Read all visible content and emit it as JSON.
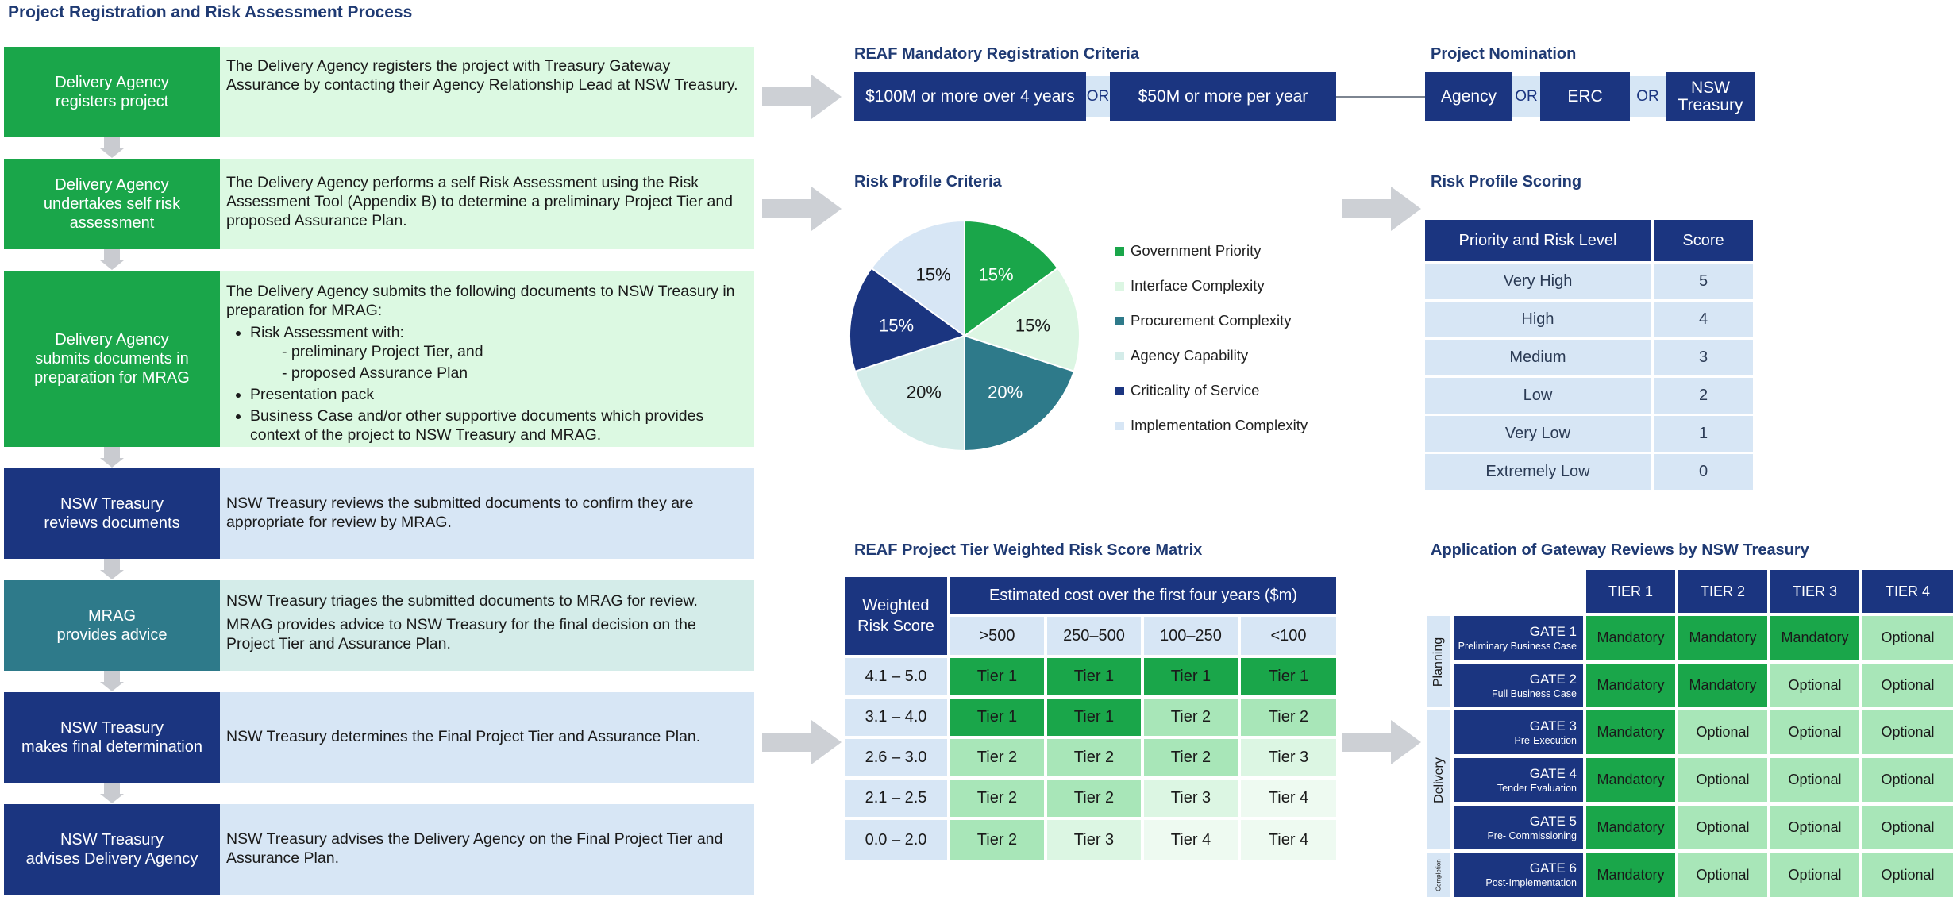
{
  "title": "Project Registration and Risk Assessment Process",
  "steps": [
    {
      "box": "Delivery Agency\nregisters project",
      "desc": "The Delivery Agency registers the project with Treasury Gateway Assurance by contacting their Agency Relationship Lead at NSW Treasury."
    },
    {
      "box": "Delivery Agency\nundertakes self risk\nassessment",
      "desc": "The Delivery Agency performs a self Risk Assessment using the Risk Assessment Tool (Appendix B) to determine a preliminary Project Tier and proposed Assurance Plan."
    },
    {
      "box": "Delivery Agency\nsubmits documents in\npreparation for MRAG",
      "desc": "The Delivery Agency submits the following documents to NSW Treasury in preparation for MRAG:",
      "bullets": [
        "Risk Assessment with:",
        "Presentation pack",
        "Business Case and/or other supportive documents which provides context of the project to NSW Treasury and MRAG."
      ],
      "subitems": [
        "- preliminary Project Tier, and",
        "- proposed Assurance Plan"
      ]
    },
    {
      "box": "NSW Treasury\nreviews documents",
      "desc": "NSW Treasury reviews the submitted documents to confirm they are appropriate for review by MRAG."
    },
    {
      "box": "MRAG\nprovides advice",
      "desc": "NSW Treasury triages the submitted documents to MRAG for review.",
      "desc2": "MRAG provides advice to NSW Treasury for the final decision on the Project Tier and Assurance Plan."
    },
    {
      "box": "NSW Treasury\nmakes final determination",
      "desc": "NSW Treasury determines the Final Project Tier and Assurance Plan."
    },
    {
      "box": "NSW Treasury\nadvises Delivery Agency",
      "desc": "NSW Treasury advises the Delivery Agency on the Final Project Tier and Assurance Plan."
    }
  ],
  "reaf": {
    "heading": "REAF Mandatory Registration Criteria",
    "option1": "$100M or more over 4 years",
    "or": "OR",
    "option2": "$50M or more per year"
  },
  "nomination": {
    "heading": "Project Nomination",
    "items": [
      "Agency",
      "ERC",
      "NSW\nTreasury"
    ],
    "or": "OR"
  },
  "chart_data": {
    "type": "pie",
    "title": "Risk Profile Criteria",
    "categories": [
      "Government Priority",
      "Interface Complexity",
      "Procurement Complexity",
      "Agency Capability",
      "Criticality of Service",
      "Implementation Complexity"
    ],
    "values": [
      15,
      15,
      20,
      20,
      15,
      15
    ],
    "labels": [
      "15%",
      "15%",
      "20%",
      "20%",
      "15%",
      "15%"
    ],
    "colors": [
      "#1aa64a",
      "#dcf6e3",
      "#2e7a8a",
      "#d4ece9",
      "#1b3580",
      "#d7e6f5"
    ],
    "legend": "right"
  },
  "scoring": {
    "heading": "Risk Profile Scoring",
    "columns": [
      "Priority and Risk Level",
      "Score"
    ],
    "rows": [
      [
        "Very High",
        "5"
      ],
      [
        "High",
        "4"
      ],
      [
        "Medium",
        "3"
      ],
      [
        "Low",
        "2"
      ],
      [
        "Very Low",
        "1"
      ],
      [
        "Extremely Low",
        "0"
      ]
    ]
  },
  "matrix": {
    "heading": "REAF Project Tier Weighted Risk Score Matrix",
    "row_header": "Weighted\nRisk Score",
    "col_header": "Estimated cost over the first four years ($m)",
    "cost_bands": [
      ">500",
      "250–500",
      "100–250",
      "<100"
    ],
    "rows": [
      {
        "score": "4.1 – 5.0",
        "tiers": [
          "Tier 1",
          "Tier 1",
          "Tier 1",
          "Tier 1"
        ]
      },
      {
        "score": "3.1 – 4.0",
        "tiers": [
          "Tier 1",
          "Tier 1",
          "Tier 2",
          "Tier 2"
        ]
      },
      {
        "score": "2.6 – 3.0",
        "tiers": [
          "Tier 2",
          "Tier 2",
          "Tier 2",
          "Tier 3"
        ]
      },
      {
        "score": "2.1 – 2.5",
        "tiers": [
          "Tier 2",
          "Tier 2",
          "Tier 3",
          "Tier 4"
        ]
      },
      {
        "score": "0.0 – 2.0",
        "tiers": [
          "Tier 2",
          "Tier 3",
          "Tier 4",
          "Tier 4"
        ]
      }
    ],
    "tier_colors": {
      "Tier 1": "#1aa64a",
      "Tier 2": "#a8e6b8",
      "Tier 3": "#dcf6e3",
      "Tier 4": "#eefaf1"
    }
  },
  "gateway": {
    "heading": "Application of Gateway Reviews by NSW Treasury",
    "tiers": [
      "TIER 1",
      "TIER 2",
      "TIER 3",
      "TIER 4"
    ],
    "phases": [
      {
        "name": "Planning",
        "rows": 2
      },
      {
        "name": "Delivery",
        "rows": 3
      },
      {
        "name": "Completion",
        "rows": 1
      }
    ],
    "gates": [
      {
        "gate": "GATE 1",
        "desc": "Preliminary Business Case",
        "values": [
          "Mandatory",
          "Mandatory",
          "Mandatory",
          "Optional"
        ]
      },
      {
        "gate": "GATE 2",
        "desc": "Full Business Case",
        "values": [
          "Mandatory",
          "Mandatory",
          "Optional",
          "Optional"
        ]
      },
      {
        "gate": "GATE 3",
        "desc": "Pre-Execution",
        "values": [
          "Mandatory",
          "Optional",
          "Optional",
          "Optional"
        ]
      },
      {
        "gate": "GATE 4",
        "desc": "Tender Evaluation",
        "values": [
          "Mandatory",
          "Optional",
          "Optional",
          "Optional"
        ]
      },
      {
        "gate": "GATE 5",
        "desc": "Pre- Commissioning",
        "values": [
          "Mandatory",
          "Optional",
          "Optional",
          "Optional"
        ]
      },
      {
        "gate": "GATE 6",
        "desc": "Post-Implementation",
        "values": [
          "Mandatory",
          "Optional",
          "Optional",
          "Optional"
        ]
      }
    ],
    "value_colors": {
      "Mandatory": "#1aa64a",
      "Optional": "#a8e6b8"
    }
  }
}
